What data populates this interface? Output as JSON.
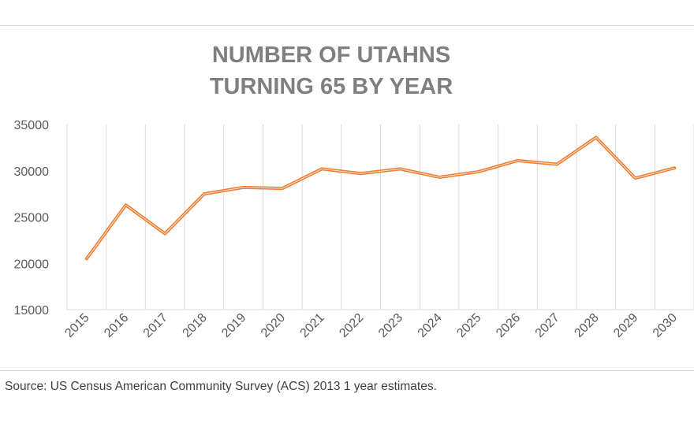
{
  "chart_data": {
    "type": "line",
    "title_lines": [
      "NUMBER OF UTAHNS",
      "TURNING 65 BY YEAR"
    ],
    "categories": [
      "2015",
      "2016",
      "2017",
      "2018",
      "2019",
      "2020",
      "2021",
      "2022",
      "2023",
      "2024",
      "2025",
      "2026",
      "2027",
      "2028",
      "2029",
      "2030"
    ],
    "series": [
      {
        "values": [
          20500,
          26300,
          23200,
          27500,
          28200,
          28100,
          30200,
          29700,
          30200,
          29300,
          29900,
          31100,
          30700,
          33600,
          29200,
          30300
        ],
        "color": "#ed7d31"
      }
    ],
    "ylim": [
      15000,
      35000
    ],
    "yticks": [
      "15000",
      "20000",
      "25000",
      "30000",
      "35000"
    ],
    "grid": "vertical",
    "legend": "none"
  },
  "footer": {
    "source": "Source: US Census American Community Survey (ACS) 2013 1 year estimates."
  }
}
